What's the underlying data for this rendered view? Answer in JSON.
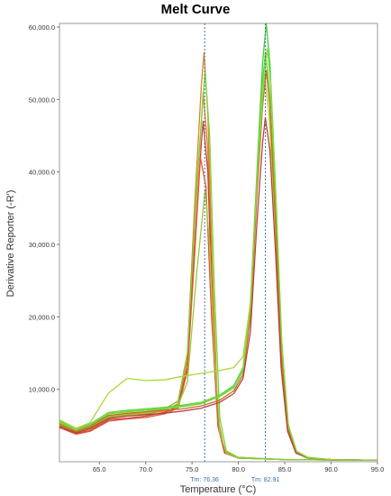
{
  "chart_data": {
    "type": "line",
    "title": "Melt Curve",
    "xlabel": "Temperature (°C)",
    "ylabel": "Derivative Reporter (-R')",
    "xlim": [
      60.7,
      95.0
    ],
    "ylim": [
      0,
      60500
    ],
    "x_ticks": [
      65.0,
      70.0,
      75.0,
      80.0,
      85.0,
      90.0,
      95.0
    ],
    "x_tick_labels": [
      "65.0",
      "70.0",
      "75.0",
      "80.0",
      "85.0",
      "90.0",
      "95.0"
    ],
    "y_ticks": [
      10000,
      20000,
      30000,
      40000,
      50000,
      60000
    ],
    "y_tick_labels": [
      "10,000.0",
      "20,000.0",
      "30,000.0",
      "40,000.0",
      "50,000.0",
      "60,000.0"
    ],
    "grid": false,
    "legend": "none",
    "tm_markers": [
      {
        "x": 76.36,
        "label": "Tm: 76.36"
      },
      {
        "x": 82.91,
        "label": "Tm: 82.91"
      }
    ],
    "series": [
      {
        "color": "#d4882a",
        "peak_x": 76.3,
        "peak_y": 56500,
        "points": [
          [
            60.7,
            5200
          ],
          [
            62.5,
            4200
          ],
          [
            64,
            4700
          ],
          [
            66,
            6200
          ],
          [
            68,
            6500
          ],
          [
            70,
            6800
          ],
          [
            72,
            7200
          ],
          [
            73.5,
            8400
          ],
          [
            74.5,
            15000
          ],
          [
            75.3,
            36000
          ],
          [
            76.0,
            52000
          ],
          [
            76.3,
            56500
          ],
          [
            76.7,
            48000
          ],
          [
            77.2,
            26000
          ],
          [
            77.8,
            6000
          ],
          [
            78.5,
            1500
          ],
          [
            80,
            600
          ],
          [
            85,
            300
          ],
          [
            95,
            200
          ]
        ]
      },
      {
        "color": "#e07a1f",
        "peak_x": 76.2,
        "peak_y": 51000,
        "points": [
          [
            60.7,
            5000
          ],
          [
            62.5,
            4000
          ],
          [
            64,
            4500
          ],
          [
            66,
            6000
          ],
          [
            68,
            6300
          ],
          [
            70,
            6600
          ],
          [
            72,
            7000
          ],
          [
            73.5,
            8000
          ],
          [
            74.5,
            14000
          ],
          [
            75.3,
            33000
          ],
          [
            76.0,
            47000
          ],
          [
            76.2,
            51000
          ],
          [
            76.7,
            43000
          ],
          [
            77.2,
            23000
          ],
          [
            77.8,
            5500
          ],
          [
            78.5,
            1400
          ],
          [
            80,
            550
          ],
          [
            85,
            300
          ],
          [
            95,
            200
          ]
        ]
      },
      {
        "color": "#c0443a",
        "peak_x": 76.2,
        "peak_y": 47000,
        "points": [
          [
            60.7,
            4800
          ],
          [
            62.5,
            3900
          ],
          [
            64,
            4300
          ],
          [
            66,
            5800
          ],
          [
            68,
            6000
          ],
          [
            70,
            6300
          ],
          [
            72,
            6800
          ],
          [
            73.5,
            7600
          ],
          [
            74.5,
            13000
          ],
          [
            75.3,
            30000
          ],
          [
            76.0,
            44000
          ],
          [
            76.2,
            47000
          ],
          [
            76.7,
            40000
          ],
          [
            77.2,
            21000
          ],
          [
            77.8,
            5000
          ],
          [
            78.5,
            1300
          ],
          [
            80,
            500
          ],
          [
            85,
            300
          ],
          [
            95,
            200
          ]
        ]
      },
      {
        "color": "#e4553a",
        "peak_x": 75.9,
        "peak_y": 42000,
        "points": [
          [
            60.7,
            4700
          ],
          [
            62.5,
            3800
          ],
          [
            64,
            4200
          ],
          [
            66,
            5600
          ],
          [
            68,
            5900
          ],
          [
            70,
            6100
          ],
          [
            72,
            6600
          ],
          [
            73.5,
            7400
          ],
          [
            74.5,
            12500
          ],
          [
            75.3,
            29000
          ],
          [
            75.9,
            42000
          ],
          [
            76.5,
            38000
          ],
          [
            77.1,
            20000
          ],
          [
            77.8,
            4800
          ],
          [
            78.5,
            1200
          ],
          [
            80,
            500
          ],
          [
            85,
            300
          ],
          [
            95,
            200
          ]
        ]
      },
      {
        "color": "#9bc83a",
        "peak_x": 76.4,
        "peak_y": 37500,
        "points": [
          [
            60.7,
            5100
          ],
          [
            62.5,
            4100
          ],
          [
            64,
            4600
          ],
          [
            66,
            6100
          ],
          [
            68,
            6400
          ],
          [
            70,
            6700
          ],
          [
            72,
            7100
          ],
          [
            73.5,
            7800
          ],
          [
            74.5,
            11000
          ],
          [
            75.5,
            26000
          ],
          [
            76.4,
            37500
          ],
          [
            76.9,
            30000
          ],
          [
            77.4,
            15000
          ],
          [
            78,
            4000
          ],
          [
            78.7,
            1200
          ],
          [
            80,
            500
          ],
          [
            85,
            300
          ],
          [
            95,
            200
          ]
        ]
      },
      {
        "color": "#7bd63a",
        "peak_x": 76.4,
        "peak_y": 54000,
        "points": [
          [
            60.7,
            5300
          ],
          [
            62.5,
            4300
          ],
          [
            64,
            4800
          ],
          [
            66,
            6300
          ],
          [
            68,
            6600
          ],
          [
            70,
            6900
          ],
          [
            72,
            7300
          ],
          [
            73.5,
            8300
          ],
          [
            74.5,
            15000
          ],
          [
            75.5,
            38000
          ],
          [
            76.4,
            54000
          ],
          [
            76.9,
            45000
          ],
          [
            77.4,
            24000
          ],
          [
            78,
            6000
          ],
          [
            78.7,
            1500
          ],
          [
            80,
            600
          ],
          [
            85,
            300
          ],
          [
            95,
            200
          ]
        ]
      },
      {
        "color": "#3fcf3a",
        "peak_x": 83.0,
        "peak_y": 60500,
        "points": [
          [
            60.7,
            5600
          ],
          [
            62.5,
            4500
          ],
          [
            64,
            5200
          ],
          [
            66,
            6800
          ],
          [
            68,
            7100
          ],
          [
            70,
            7300
          ],
          [
            72,
            7500
          ],
          [
            74,
            7800
          ],
          [
            76,
            8200
          ],
          [
            78,
            9200
          ],
          [
            79.5,
            10500
          ],
          [
            80.5,
            13000
          ],
          [
            81.3,
            22000
          ],
          [
            82.0,
            40000
          ],
          [
            82.6,
            55000
          ],
          [
            83.0,
            60500
          ],
          [
            83.4,
            55000
          ],
          [
            84.0,
            38000
          ],
          [
            84.6,
            18000
          ],
          [
            85.3,
            5500
          ],
          [
            86.2,
            1500
          ],
          [
            87.5,
            600
          ],
          [
            90,
            300
          ],
          [
            95,
            200
          ]
        ]
      },
      {
        "color": "#62d33a",
        "peak_x": 82.9,
        "peak_y": 56500,
        "points": [
          [
            60.7,
            5400
          ],
          [
            62.5,
            4400
          ],
          [
            64,
            5000
          ],
          [
            66,
            6600
          ],
          [
            68,
            6900
          ],
          [
            70,
            7100
          ],
          [
            72,
            7300
          ],
          [
            74,
            7600
          ],
          [
            76,
            8000
          ],
          [
            78,
            9000
          ],
          [
            79.5,
            10200
          ],
          [
            80.5,
            12500
          ],
          [
            81.3,
            21000
          ],
          [
            82.0,
            38000
          ],
          [
            82.5,
            51000
          ],
          [
            82.9,
            56500
          ],
          [
            83.4,
            51000
          ],
          [
            84.0,
            35000
          ],
          [
            84.6,
            16000
          ],
          [
            85.3,
            5000
          ],
          [
            86.2,
            1400
          ],
          [
            87.5,
            550
          ],
          [
            90,
            300
          ],
          [
            95,
            200
          ]
        ]
      },
      {
        "color": "#a8d93a",
        "peak_x": 82.8,
        "peak_y": 53500,
        "points": [
          [
            60.7,
            5800
          ],
          [
            62.5,
            4600
          ],
          [
            64,
            5400
          ],
          [
            66,
            9500
          ],
          [
            68,
            11500
          ],
          [
            70,
            11200
          ],
          [
            72,
            11300
          ],
          [
            74,
            11800
          ],
          [
            76,
            12200
          ],
          [
            78,
            12600
          ],
          [
            79.5,
            13000
          ],
          [
            80.5,
            14500
          ],
          [
            81.3,
            22000
          ],
          [
            82.0,
            38000
          ],
          [
            82.5,
            49000
          ],
          [
            82.8,
            53500
          ],
          [
            83.3,
            48000
          ],
          [
            84.0,
            32000
          ],
          [
            84.6,
            14000
          ],
          [
            85.3,
            4500
          ],
          [
            86.2,
            1300
          ],
          [
            87.5,
            500
          ],
          [
            90,
            300
          ],
          [
            95,
            200
          ]
        ]
      },
      {
        "color": "#c96a2a",
        "peak_x": 83.0,
        "peak_y": 54000,
        "points": [
          [
            60.7,
            5200
          ],
          [
            62.5,
            4200
          ],
          [
            64,
            4900
          ],
          [
            66,
            6400
          ],
          [
            68,
            6700
          ],
          [
            70,
            6900
          ],
          [
            72,
            7100
          ],
          [
            74,
            7300
          ],
          [
            76,
            7700
          ],
          [
            78,
            8500
          ],
          [
            79.5,
            9800
          ],
          [
            80.5,
            12000
          ],
          [
            81.3,
            20000
          ],
          [
            82.0,
            37000
          ],
          [
            82.6,
            49000
          ],
          [
            83.0,
            54000
          ],
          [
            83.4,
            49000
          ],
          [
            84.0,
            33000
          ],
          [
            84.6,
            15000
          ],
          [
            85.3,
            4700
          ],
          [
            86.2,
            1300
          ],
          [
            87.5,
            500
          ],
          [
            90,
            300
          ],
          [
            95,
            200
          ]
        ]
      },
      {
        "color": "#b8423a",
        "peak_x": 82.9,
        "peak_y": 47500,
        "points": [
          [
            60.7,
            4900
          ],
          [
            62.5,
            4000
          ],
          [
            64,
            4600
          ],
          [
            66,
            6000
          ],
          [
            68,
            6300
          ],
          [
            70,
            6500
          ],
          [
            72,
            6700
          ],
          [
            74,
            7000
          ],
          [
            76,
            7400
          ],
          [
            78,
            8200
          ],
          [
            79.5,
            9400
          ],
          [
            80.5,
            11500
          ],
          [
            81.3,
            18000
          ],
          [
            82.0,
            33000
          ],
          [
            82.6,
            44000
          ],
          [
            82.9,
            47500
          ],
          [
            83.4,
            43000
          ],
          [
            84.0,
            29000
          ],
          [
            84.6,
            13000
          ],
          [
            85.3,
            4200
          ],
          [
            86.2,
            1200
          ],
          [
            87.5,
            500
          ],
          [
            90,
            300
          ],
          [
            95,
            200
          ]
        ]
      },
      {
        "color": "#8ed83a",
        "peak_x": 83.1,
        "peak_y": 57000,
        "points": [
          [
            60.7,
            5500
          ],
          [
            62.5,
            4400
          ],
          [
            64,
            5100
          ],
          [
            66,
            6700
          ],
          [
            68,
            7000
          ],
          [
            70,
            7200
          ],
          [
            72,
            7400
          ],
          [
            74,
            7700
          ],
          [
            76,
            8100
          ],
          [
            78,
            9100
          ],
          [
            79.5,
            10300
          ],
          [
            80.5,
            12800
          ],
          [
            81.3,
            21500
          ],
          [
            82.0,
            39000
          ],
          [
            82.7,
            52000
          ],
          [
            83.1,
            57000
          ],
          [
            83.5,
            52000
          ],
          [
            84.1,
            35000
          ],
          [
            84.7,
            16000
          ],
          [
            85.4,
            5000
          ],
          [
            86.3,
            1400
          ],
          [
            87.5,
            550
          ],
          [
            90,
            300
          ],
          [
            95,
            200
          ]
        ]
      }
    ]
  }
}
